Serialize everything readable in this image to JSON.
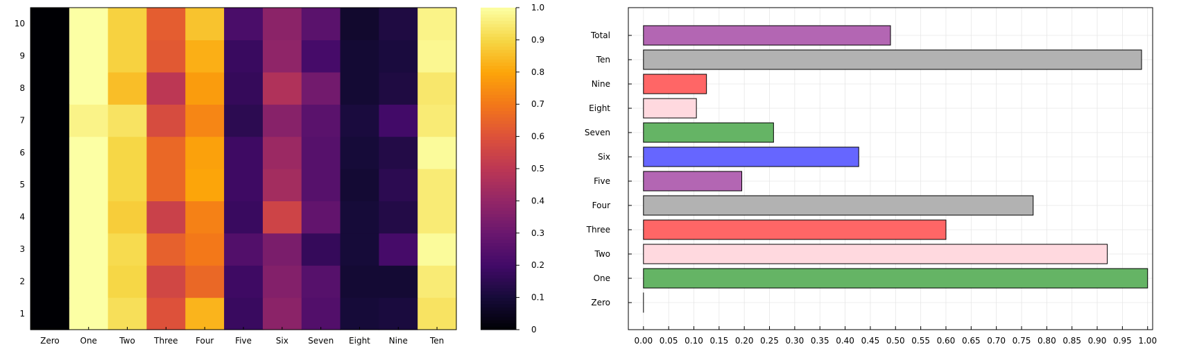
{
  "chart_data": [
    {
      "type": "heatmap",
      "title": "",
      "xlabel": "",
      "ylabel": "",
      "x_categories": [
        "Zero",
        "One",
        "Two",
        "Three",
        "Four",
        "Five",
        "Six",
        "Seven",
        "Eight",
        "Nine",
        "Ten"
      ],
      "y_categories": [
        "1",
        "2",
        "3",
        "4",
        "5",
        "6",
        "7",
        "8",
        "9",
        "10"
      ],
      "rows_bottom_to_top": [
        [
          0.0,
          1.0,
          0.92,
          0.6,
          0.83,
          0.18,
          0.38,
          0.24,
          0.1,
          0.11,
          0.93
        ],
        [
          0.0,
          1.0,
          0.9,
          0.56,
          0.66,
          0.19,
          0.36,
          0.25,
          0.09,
          0.09,
          0.95
        ],
        [
          0.0,
          1.0,
          0.91,
          0.64,
          0.7,
          0.24,
          0.34,
          0.17,
          0.1,
          0.21,
          0.99
        ],
        [
          0.0,
          1.0,
          0.88,
          0.54,
          0.72,
          0.18,
          0.55,
          0.28,
          0.1,
          0.13,
          0.95
        ],
        [
          0.0,
          1.0,
          0.9,
          0.66,
          0.8,
          0.19,
          0.44,
          0.25,
          0.09,
          0.15,
          0.95
        ],
        [
          0.0,
          1.0,
          0.9,
          0.66,
          0.79,
          0.19,
          0.42,
          0.25,
          0.1,
          0.13,
          0.99
        ],
        [
          0.0,
          0.97,
          0.93,
          0.58,
          0.73,
          0.15,
          0.37,
          0.26,
          0.11,
          0.2,
          0.95
        ],
        [
          0.0,
          1.0,
          0.85,
          0.5,
          0.78,
          0.17,
          0.47,
          0.32,
          0.09,
          0.12,
          0.94
        ],
        [
          0.0,
          1.0,
          0.89,
          0.62,
          0.82,
          0.18,
          0.39,
          0.21,
          0.09,
          0.11,
          0.98
        ],
        [
          0.0,
          1.0,
          0.89,
          0.63,
          0.86,
          0.22,
          0.38,
          0.26,
          0.08,
          0.12,
          0.97
        ]
      ],
      "colorbar": {
        "colormap": "inferno",
        "range": [
          0,
          1
        ],
        "ticks": [
          "0",
          "0.1",
          "0.2",
          "0.3",
          "0.4",
          "0.5",
          "0.6",
          "0.7",
          "0.8",
          "0.9",
          "1.0"
        ]
      }
    },
    {
      "type": "bar",
      "orientation": "horizontal",
      "title": "",
      "xlabel": "",
      "ylabel": "",
      "categories": [
        "Zero",
        "One",
        "Two",
        "Three",
        "Four",
        "Five",
        "Six",
        "Seven",
        "Eight",
        "Nine",
        "Ten",
        "Total"
      ],
      "values": [
        0.0,
        1.0,
        0.92,
        0.6,
        0.773,
        0.195,
        0.427,
        0.258,
        0.105,
        0.125,
        0.988,
        0.49
      ],
      "colors": [
        "#808080",
        "#65b465",
        "#ffd9df",
        "#ff6666",
        "#b2b2b2",
        "#b366b3",
        "#6666ff",
        "#65b465",
        "#ffd9df",
        "#ff6666",
        "#b2b2b2",
        "#b366b3"
      ],
      "xlim": [
        -0.03,
        1.01
      ],
      "xticks": [
        "0.00",
        "0.05",
        "0.10",
        "0.15",
        "0.20",
        "0.25",
        "0.30",
        "0.35",
        "0.40",
        "0.45",
        "0.50",
        "0.55",
        "0.60",
        "0.65",
        "0.70",
        "0.75",
        "0.80",
        "0.85",
        "0.90",
        "0.95",
        "1.00"
      ],
      "grid": true,
      "legend": "none"
    }
  ]
}
